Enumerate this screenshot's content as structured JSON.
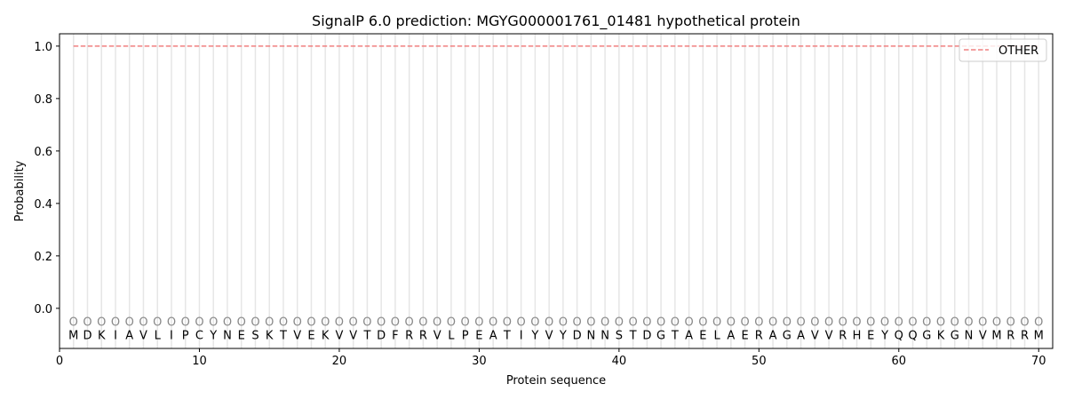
{
  "chart_data": {
    "type": "line",
    "title": "SignalP 6.0 prediction: MGYG000001761_01481 hypothetical protein",
    "xlabel": "Protein sequence",
    "ylabel": "Probability",
    "xlim": [
      0,
      71
    ],
    "ylim": [
      -0.153,
      1.047
    ],
    "xticks": [
      0,
      10,
      20,
      30,
      40,
      50,
      60,
      70
    ],
    "yticks": [
      0.0,
      0.2,
      0.4,
      0.6,
      0.8,
      1.0
    ],
    "ytick_labels": [
      "0.0",
      "0.2",
      "0.4",
      "0.6",
      "0.8",
      "1.0"
    ],
    "grid": "vertical line at each residue",
    "legend_position": "top-right",
    "sequence": "MDKIAVLIPCYNESKTVEKVVTDFRRVLPEATIYVYDNNSTDGTAELAERAGAVVRHEYQQGKGNVMRRM",
    "region_label": "O",
    "series": [
      {
        "name": "OTHER",
        "color": "#f08080",
        "style": "dashed",
        "x_start": 1,
        "x_end": 70,
        "value": 1.0
      }
    ]
  }
}
